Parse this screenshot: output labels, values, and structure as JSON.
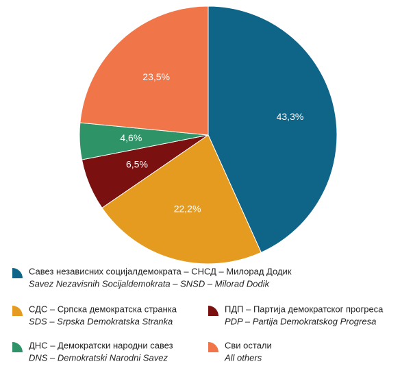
{
  "chart_data": {
    "type": "pie",
    "categories": [
      "Савез независних социјалдемократа – СНСД – Милорад Додик",
      "СДС – Српска демократска странка",
      "ПДП – Партија демократског прогреса",
      "ДНС – Демократски народни савез",
      "Сви остали"
    ],
    "categories_latin": [
      "Savez Nezavisnih Socijaldemokrata – SNSD – Milorad Dodik",
      "SDS – Srpska Demokratska Stranka",
      "PDP – Partija Demokratskog Progresa",
      "DNS – Demokratski Narodni Savez",
      "All others"
    ],
    "values": [
      43.3,
      22.2,
      6.5,
      4.6,
      23.5
    ],
    "value_labels": [
      "43,3%",
      "22,2%",
      "6,5%",
      "4,6%",
      "23,5%"
    ],
    "colors": [
      "#0e6587",
      "#e49b1f",
      "#7a1010",
      "#2e9366",
      "#f07549"
    ]
  }
}
